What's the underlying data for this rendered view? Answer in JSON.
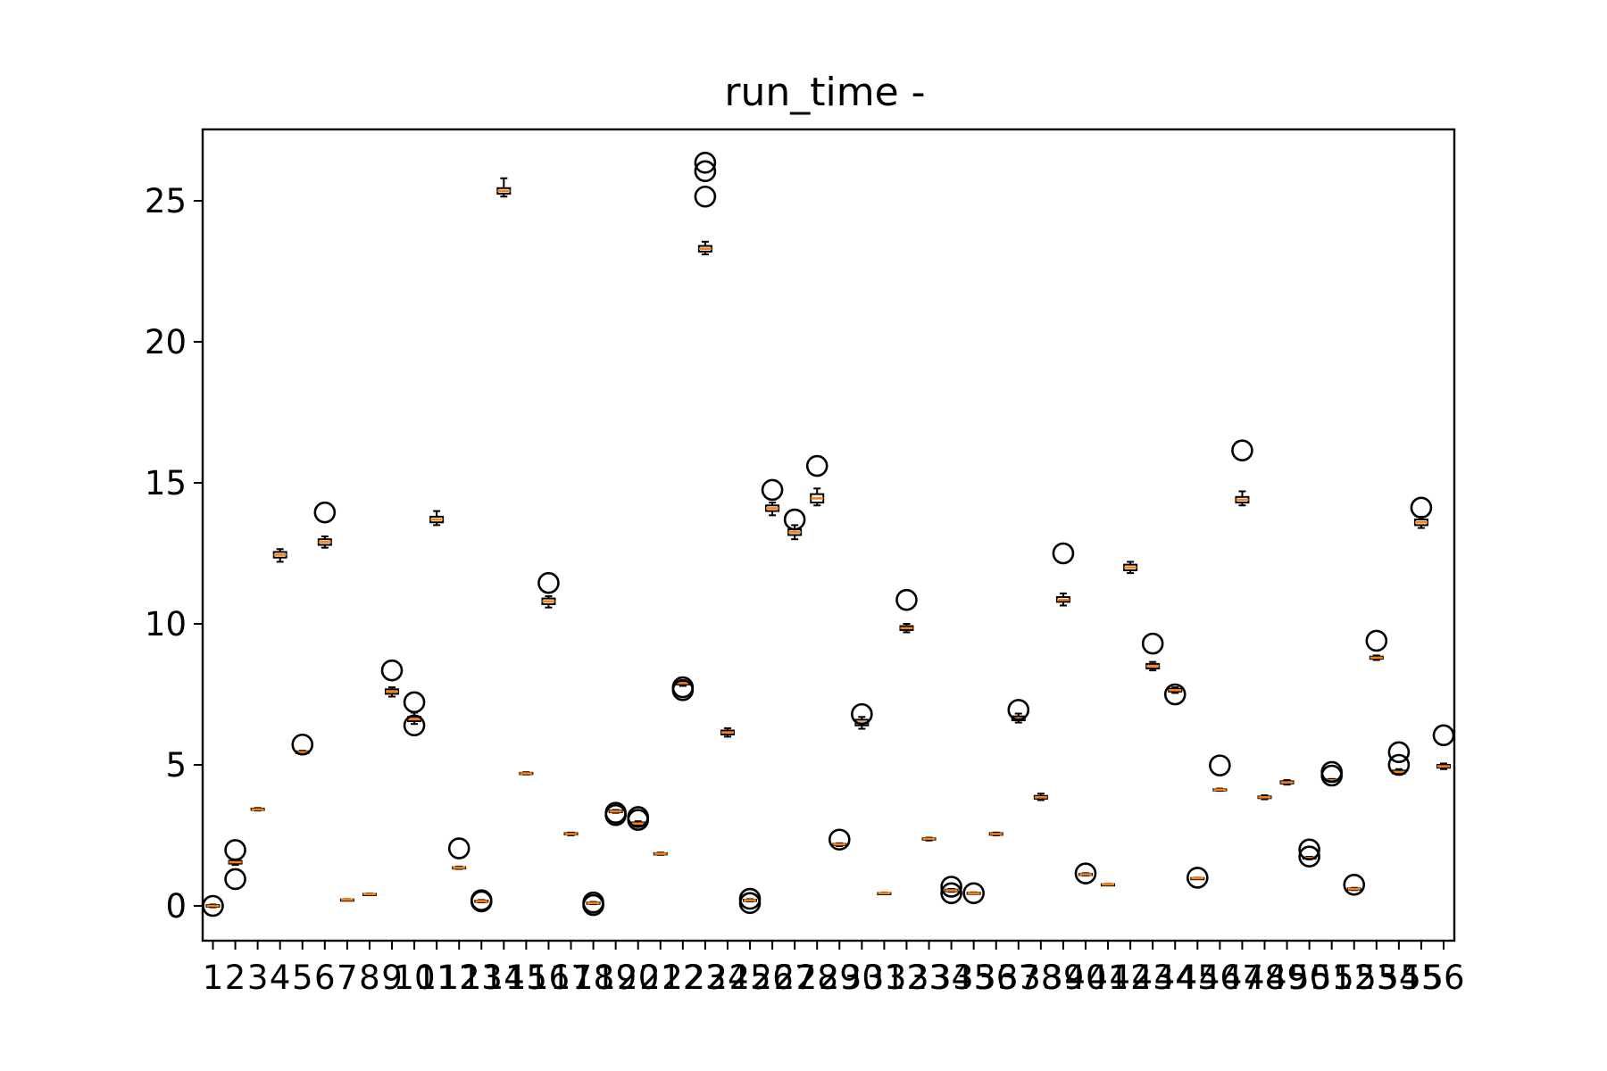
{
  "chart_data": {
    "type": "boxplot",
    "title": "run_time -",
    "xlabel": "",
    "ylabel": "",
    "ylim": [
      -1.3,
      27.5
    ],
    "yticks": [
      0,
      5,
      10,
      15,
      20,
      25
    ],
    "ytick_labels": [
      "0",
      "5",
      "10",
      "15",
      "20",
      "25"
    ],
    "categories": [
      "1",
      "2",
      "3",
      "4",
      "5",
      "6",
      "7",
      "8",
      "9",
      "10",
      "11",
      "12",
      "13",
      "14",
      "15",
      "16",
      "17",
      "18",
      "19",
      "20",
      "21",
      "22",
      "23",
      "24",
      "25",
      "26",
      "27",
      "28",
      "29",
      "30",
      "31",
      "32",
      "33",
      "34",
      "35",
      "36",
      "37",
      "38",
      "39",
      "40",
      "41",
      "42",
      "43",
      "44",
      "45",
      "46",
      "47",
      "48",
      "49",
      "50",
      "51",
      "52",
      "53",
      "54",
      "55",
      "56"
    ],
    "grid": false,
    "colors": {
      "median": "#ff7f0e",
      "box": "#000000",
      "outlier": "#000000",
      "background": "#ffffff"
    },
    "boxes": [
      {
        "median": 0.0,
        "q1": -0.03,
        "q3": 0.03,
        "whislo": -0.05,
        "whishi": 0.05,
        "fliers": [
          0.0
        ]
      },
      {
        "median": 1.55,
        "q1": 1.5,
        "q3": 1.6,
        "whislo": 1.45,
        "whishi": 1.65,
        "fliers": [
          0.95,
          1.98
        ]
      },
      {
        "median": 3.42,
        "q1": 3.4,
        "q3": 3.45,
        "whislo": 3.38,
        "whishi": 3.47,
        "fliers": []
      },
      {
        "median": 12.45,
        "q1": 12.35,
        "q3": 12.55,
        "whislo": 12.2,
        "whishi": 12.65,
        "fliers": []
      },
      {
        "median": 5.45,
        "q1": 5.42,
        "q3": 5.48,
        "whislo": 5.4,
        "whishi": 5.5,
        "fliers": [
          5.72
        ]
      },
      {
        "median": 12.9,
        "q1": 12.8,
        "q3": 13.0,
        "whislo": 12.7,
        "whishi": 13.1,
        "fliers": [
          13.95
        ]
      },
      {
        "median": 0.22,
        "q1": 0.21,
        "q3": 0.23,
        "whislo": 0.2,
        "whishi": 0.24,
        "fliers": []
      },
      {
        "median": 0.42,
        "q1": 0.41,
        "q3": 0.43,
        "whislo": 0.4,
        "whishi": 0.44,
        "fliers": []
      },
      {
        "median": 7.6,
        "q1": 7.52,
        "q3": 7.68,
        "whislo": 7.42,
        "whishi": 7.75,
        "fliers": [
          8.35
        ]
      },
      {
        "median": 6.62,
        "q1": 6.55,
        "q3": 6.7,
        "whislo": 6.45,
        "whishi": 6.85,
        "fliers": [
          6.4,
          7.22
        ]
      },
      {
        "median": 13.7,
        "q1": 13.6,
        "q3": 13.8,
        "whislo": 13.5,
        "whishi": 14.0,
        "fliers": []
      },
      {
        "median": 1.35,
        "q1": 1.33,
        "q3": 1.37,
        "whislo": 1.31,
        "whishi": 1.39,
        "fliers": [
          2.04
        ]
      },
      {
        "median": 0.17,
        "q1": 0.15,
        "q3": 0.19,
        "whislo": 0.13,
        "whishi": 0.21,
        "fliers": [
          0.2,
          0.16
        ]
      },
      {
        "median": 25.35,
        "q1": 25.25,
        "q3": 25.45,
        "whislo": 25.15,
        "whishi": 25.8,
        "fliers": []
      },
      {
        "median": 4.7,
        "q1": 4.68,
        "q3": 4.72,
        "whislo": 4.66,
        "whishi": 4.74,
        "fliers": []
      },
      {
        "median": 10.8,
        "q1": 10.7,
        "q3": 10.9,
        "whislo": 10.58,
        "whishi": 10.98,
        "fliers": [
          11.45
        ]
      },
      {
        "median": 2.55,
        "q1": 2.53,
        "q3": 2.58,
        "whislo": 2.5,
        "whishi": 2.6,
        "fliers": []
      },
      {
        "median": 0.1,
        "q1": 0.08,
        "q3": 0.12,
        "whislo": 0.06,
        "whishi": 0.14,
        "fliers": [
          0.03,
          0.12
        ]
      },
      {
        "median": 3.35,
        "q1": 3.32,
        "q3": 3.38,
        "whislo": 3.3,
        "whishi": 3.4,
        "fliers": [
          3.22,
          3.3
        ]
      },
      {
        "median": 2.92,
        "q1": 2.88,
        "q3": 2.96,
        "whislo": 2.85,
        "whishi": 3.0,
        "fliers": [
          3.05,
          3.15
        ]
      },
      {
        "median": 1.85,
        "q1": 1.83,
        "q3": 1.87,
        "whislo": 1.81,
        "whishi": 1.89,
        "fliers": []
      },
      {
        "median": 7.9,
        "q1": 7.85,
        "q3": 7.95,
        "whislo": 7.8,
        "whishi": 8.0,
        "fliers": [
          7.65,
          7.75
        ]
      },
      {
        "median": 23.3,
        "q1": 23.2,
        "q3": 23.4,
        "whislo": 23.1,
        "whishi": 23.55,
        "fliers": [
          25.15,
          26.05,
          26.35
        ]
      },
      {
        "median": 6.15,
        "q1": 6.08,
        "q3": 6.22,
        "whislo": 6.0,
        "whishi": 6.3,
        "fliers": []
      },
      {
        "median": 0.2,
        "q1": 0.18,
        "q3": 0.22,
        "whislo": 0.16,
        "whishi": 0.24,
        "fliers": [
          0.1,
          0.25
        ]
      },
      {
        "median": 14.1,
        "q1": 14.0,
        "q3": 14.2,
        "whislo": 13.85,
        "whishi": 14.3,
        "fliers": [
          14.75
        ]
      },
      {
        "median": 13.25,
        "q1": 13.15,
        "q3": 13.35,
        "whislo": 13.0,
        "whishi": 13.5,
        "fliers": [
          13.7
        ]
      },
      {
        "median": 14.45,
        "q1": 14.3,
        "q3": 14.6,
        "whislo": 14.2,
        "whishi": 14.8,
        "fliers": [
          15.6
        ]
      },
      {
        "median": 2.18,
        "q1": 2.15,
        "q3": 2.2,
        "whislo": 2.12,
        "whishi": 2.22,
        "fliers": [
          2.35
        ]
      },
      {
        "median": 6.5,
        "q1": 6.4,
        "q3": 6.6,
        "whislo": 6.28,
        "whishi": 6.7,
        "fliers": [
          6.8
        ]
      },
      {
        "median": 0.45,
        "q1": 0.44,
        "q3": 0.46,
        "whislo": 0.43,
        "whishi": 0.47,
        "fliers": []
      },
      {
        "median": 9.85,
        "q1": 9.78,
        "q3": 9.92,
        "whislo": 9.7,
        "whishi": 10.0,
        "fliers": [
          10.85
        ]
      },
      {
        "median": 2.38,
        "q1": 2.35,
        "q3": 2.4,
        "whislo": 2.32,
        "whishi": 2.42,
        "fliers": []
      },
      {
        "median": 0.55,
        "q1": 0.52,
        "q3": 0.58,
        "whislo": 0.5,
        "whishi": 0.6,
        "fliers": [
          0.45,
          0.68
        ]
      },
      {
        "median": 0.45,
        "q1": 0.44,
        "q3": 0.47,
        "whislo": 0.43,
        "whishi": 0.48,
        "fliers": [
          0.45
        ]
      },
      {
        "median": 2.55,
        "q1": 2.52,
        "q3": 2.58,
        "whislo": 2.5,
        "whishi": 2.6,
        "fliers": []
      },
      {
        "median": 6.65,
        "q1": 6.58,
        "q3": 6.72,
        "whislo": 6.5,
        "whishi": 6.82,
        "fliers": [
          6.95
        ]
      },
      {
        "median": 3.85,
        "q1": 3.8,
        "q3": 3.9,
        "whislo": 3.75,
        "whishi": 3.98,
        "fliers": []
      },
      {
        "median": 10.85,
        "q1": 10.78,
        "q3": 10.95,
        "whislo": 10.65,
        "whishi": 11.08,
        "fliers": [
          12.5
        ]
      },
      {
        "median": 1.12,
        "q1": 1.1,
        "q3": 1.14,
        "whislo": 1.08,
        "whishi": 1.16,
        "fliers": [
          1.15
        ]
      },
      {
        "median": 0.76,
        "q1": 0.75,
        "q3": 0.77,
        "whislo": 0.74,
        "whishi": 0.78,
        "fliers": []
      },
      {
        "median": 12.0,
        "q1": 11.9,
        "q3": 12.1,
        "whislo": 11.8,
        "whishi": 12.2,
        "fliers": []
      },
      {
        "median": 8.5,
        "q1": 8.42,
        "q3": 8.58,
        "whislo": 8.35,
        "whishi": 8.65,
        "fliers": [
          9.3
        ]
      },
      {
        "median": 7.65,
        "q1": 7.6,
        "q3": 7.7,
        "whislo": 7.55,
        "whishi": 7.75,
        "fliers": [
          7.5
        ]
      },
      {
        "median": 0.98,
        "q1": 0.97,
        "q3": 0.99,
        "whislo": 0.96,
        "whishi": 1.0,
        "fliers": [
          1.0
        ]
      },
      {
        "median": 4.12,
        "q1": 4.1,
        "q3": 4.14,
        "whislo": 4.08,
        "whishi": 4.16,
        "fliers": [
          4.98
        ]
      },
      {
        "median": 14.4,
        "q1": 14.3,
        "q3": 14.5,
        "whislo": 14.2,
        "whishi": 14.7,
        "fliers": [
          16.15
        ]
      },
      {
        "median": 3.85,
        "q1": 3.82,
        "q3": 3.88,
        "whislo": 3.78,
        "whishi": 3.92,
        "fliers": []
      },
      {
        "median": 4.38,
        "q1": 4.34,
        "q3": 4.42,
        "whislo": 4.3,
        "whishi": 4.46,
        "fliers": []
      },
      {
        "median": 1.7,
        "q1": 1.68,
        "q3": 1.72,
        "whislo": 1.66,
        "whishi": 1.74,
        "fliers": [
          1.75,
          2.0
        ]
      },
      {
        "median": 4.45,
        "q1": 4.42,
        "q3": 4.48,
        "whislo": 4.4,
        "whishi": 4.5,
        "fliers": [
          4.62,
          4.75
        ]
      },
      {
        "median": 0.6,
        "q1": 0.58,
        "q3": 0.62,
        "whislo": 0.56,
        "whishi": 0.64,
        "fliers": [
          0.75
        ]
      },
      {
        "median": 8.8,
        "q1": 8.76,
        "q3": 8.84,
        "whislo": 8.72,
        "whishi": 8.88,
        "fliers": [
          9.4
        ]
      },
      {
        "median": 4.75,
        "q1": 4.7,
        "q3": 4.8,
        "whislo": 4.65,
        "whishi": 4.85,
        "fliers": [
          5.0,
          5.45
        ]
      },
      {
        "median": 13.6,
        "q1": 13.5,
        "q3": 13.7,
        "whislo": 13.4,
        "whishi": 13.8,
        "fliers": [
          14.12
        ]
      },
      {
        "median": 4.95,
        "q1": 4.9,
        "q3": 5.0,
        "whislo": 4.85,
        "whishi": 5.05,
        "fliers": [
          6.05
        ]
      }
    ]
  }
}
